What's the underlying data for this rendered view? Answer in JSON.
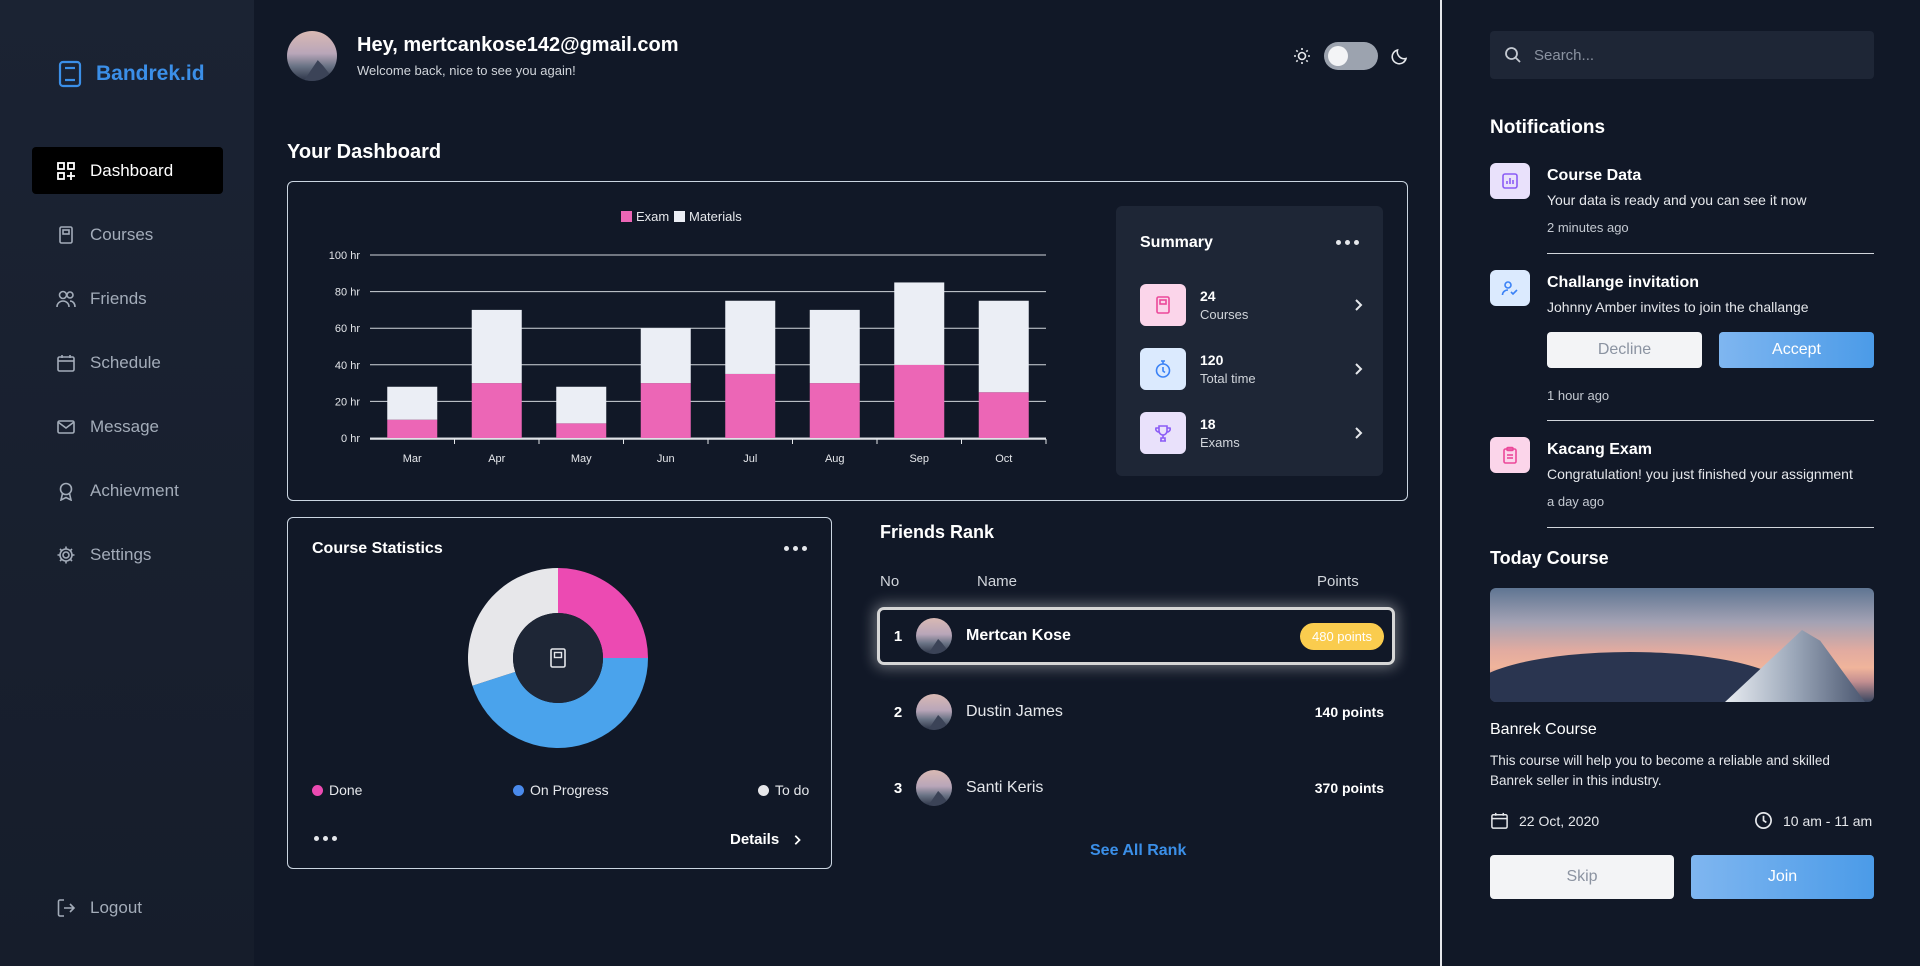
{
  "brand": {
    "name": "Bandrek.id"
  },
  "nav": {
    "items": [
      {
        "label": "Dashboard",
        "icon": "dashboard-icon",
        "active": true
      },
      {
        "label": "Courses",
        "icon": "book-icon"
      },
      {
        "label": "Friends",
        "icon": "users-icon"
      },
      {
        "label": "Schedule",
        "icon": "calendar-icon"
      },
      {
        "label": "Message",
        "icon": "mail-icon"
      },
      {
        "label": "Achievment",
        "icon": "award-icon"
      },
      {
        "label": "Settings",
        "icon": "gear-icon"
      }
    ],
    "logout": "Logout"
  },
  "header": {
    "greeting": "Hey, mertcankose142@gmail.com",
    "subtitle": "Welcome back, nice to see you again!"
  },
  "dashboard": {
    "title": "Your Dashboard"
  },
  "chart_data": {
    "type": "bar",
    "stacked": true,
    "categories": [
      "Mar",
      "Apr",
      "May",
      "Jun",
      "Jul",
      "Aug",
      "Sep",
      "Oct"
    ],
    "series": [
      {
        "name": "Exam",
        "values": [
          10,
          30,
          8,
          30,
          35,
          30,
          40,
          25
        ],
        "color": "#ec66b6"
      },
      {
        "name": "Materials",
        "values": [
          18,
          40,
          20,
          30,
          40,
          40,
          45,
          50
        ],
        "color": "#ebeef5"
      }
    ],
    "yticks": [
      "0 hr",
      "20 hr",
      "40 hr",
      "60 hr",
      "80 hr",
      "100 hr"
    ],
    "ylim": [
      0,
      100
    ],
    "grid": true,
    "legend": "top-center"
  },
  "summary": {
    "title": "Summary",
    "items": [
      {
        "value": "24",
        "label": "Courses",
        "icon": "book-icon",
        "bg": "#fbd5ea",
        "fg": "#ec4899"
      },
      {
        "value": "120",
        "label": "Total time",
        "icon": "stopwatch-icon",
        "bg": "#dbeafe",
        "fg": "#3b82f6"
      },
      {
        "value": "18",
        "label": "Exams",
        "icon": "trophy-icon",
        "bg": "#e9e1fb",
        "fg": "#8b5cf6"
      }
    ]
  },
  "course_stats": {
    "title": "Course Statistics",
    "slices": [
      {
        "name": "Done",
        "value": 25,
        "color": "#ec4ab2"
      },
      {
        "name": "On Progress",
        "value": 45,
        "color": "#4aa3ec"
      },
      {
        "name": "To do",
        "value": 30,
        "color": "#e7e7ea"
      }
    ],
    "details": "Details"
  },
  "friends_rank": {
    "title": "Friends Rank",
    "headers": {
      "no": "No",
      "name": "Name",
      "points": "Points"
    },
    "rows": [
      {
        "no": "1",
        "name": "Mertcan Kose",
        "points": "480 points",
        "highlight": true
      },
      {
        "no": "2",
        "name": "Dustin James",
        "points": "140 points"
      },
      {
        "no": "3",
        "name": "Santi Keris",
        "points": "370 points"
      }
    ],
    "see_all": "See All Rank"
  },
  "search": {
    "placeholder": "Search..."
  },
  "notifications": {
    "title": "Notifications",
    "items": [
      {
        "title": "Course Data",
        "body": "Your data is ready and you can see it now",
        "time": "2 minutes ago",
        "icon": "chart-icon"
      },
      {
        "title": "Challange invitation",
        "body": "Johnny Amber invites to join the challange",
        "time": "1 hour ago",
        "icon": "user-check-icon",
        "decline": "Decline",
        "accept": "Accept"
      },
      {
        "title": "Kacang Exam",
        "body": "Congratulation! you just finished your assignment",
        "time": "a day ago",
        "icon": "clipboard-icon"
      }
    ]
  },
  "today_course": {
    "title": "Today Course",
    "name": "Banrek Course",
    "description": "This course will help you to become a reliable and skilled Banrek seller in this industry.",
    "date": "22 Oct, 2020",
    "time": "10 am - 11 am",
    "skip": "Skip",
    "join": "Join"
  }
}
